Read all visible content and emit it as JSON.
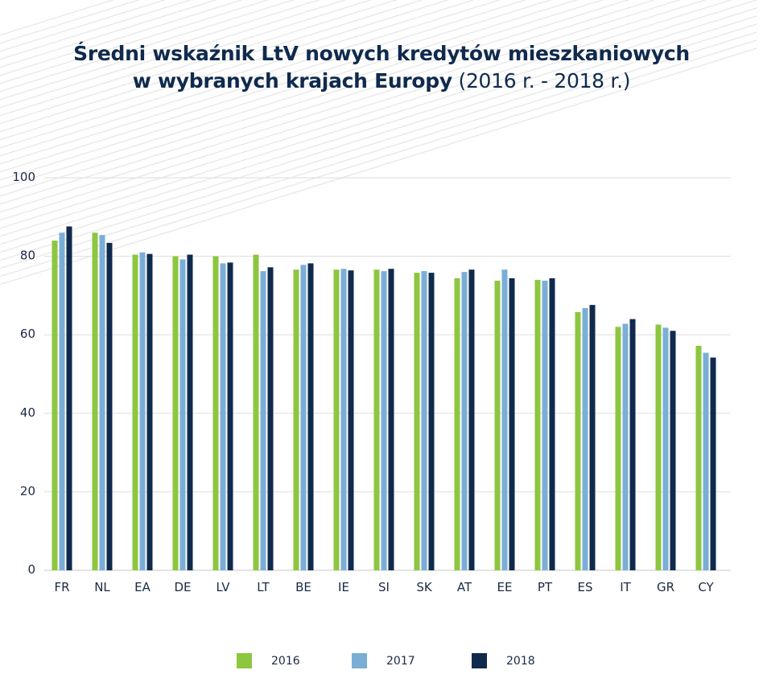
{
  "title": {
    "line1": "Średni wskaźnik LtV nowych kredytów mieszkaniowych",
    "line2_bold": "w wybranych krajach Europy",
    "line2_rest": " (2016 r. - 2018 r.)"
  },
  "colors": {
    "s2016": "#8dc63f",
    "s2017": "#7aaed6",
    "s2018": "#0f2a4d",
    "grid": "#dddddd",
    "stripes": "#e6e6e6"
  },
  "chart_data": {
    "type": "bar",
    "categories": [
      "FR",
      "NL",
      "EA",
      "DE",
      "LV",
      "LT",
      "BE",
      "IE",
      "SI",
      "SK",
      "AT",
      "EE",
      "PT",
      "ES",
      "IT",
      "GR",
      "CY"
    ],
    "series": [
      {
        "name": "2016",
        "values": [
          84.0,
          86.0,
          80.4,
          80.0,
          80.0,
          80.4,
          76.6,
          76.6,
          76.6,
          75.8,
          74.4,
          73.8,
          74.0,
          65.8,
          62.0,
          62.6,
          57.2
        ]
      },
      {
        "name": "2017",
        "values": [
          86.0,
          85.4,
          81.0,
          79.2,
          78.2,
          76.2,
          77.8,
          76.8,
          76.2,
          76.2,
          76.0,
          76.6,
          73.8,
          66.8,
          62.8,
          61.8,
          55.4
        ]
      },
      {
        "name": "2018",
        "values": [
          87.6,
          83.4,
          80.6,
          80.4,
          78.4,
          77.2,
          78.2,
          76.4,
          76.8,
          75.8,
          76.6,
          74.4,
          74.4,
          67.6,
          64.0,
          61.0,
          54.2
        ]
      }
    ],
    "yticks": [
      "0",
      "20",
      "40",
      "60",
      "80",
      "100"
    ],
    "ylim": [
      0,
      100
    ],
    "xlabel": "",
    "ylabel": "",
    "grid": true,
    "legend": "bottom-center"
  },
  "legend": {
    "items": [
      "2016",
      "2017",
      "2018"
    ]
  }
}
